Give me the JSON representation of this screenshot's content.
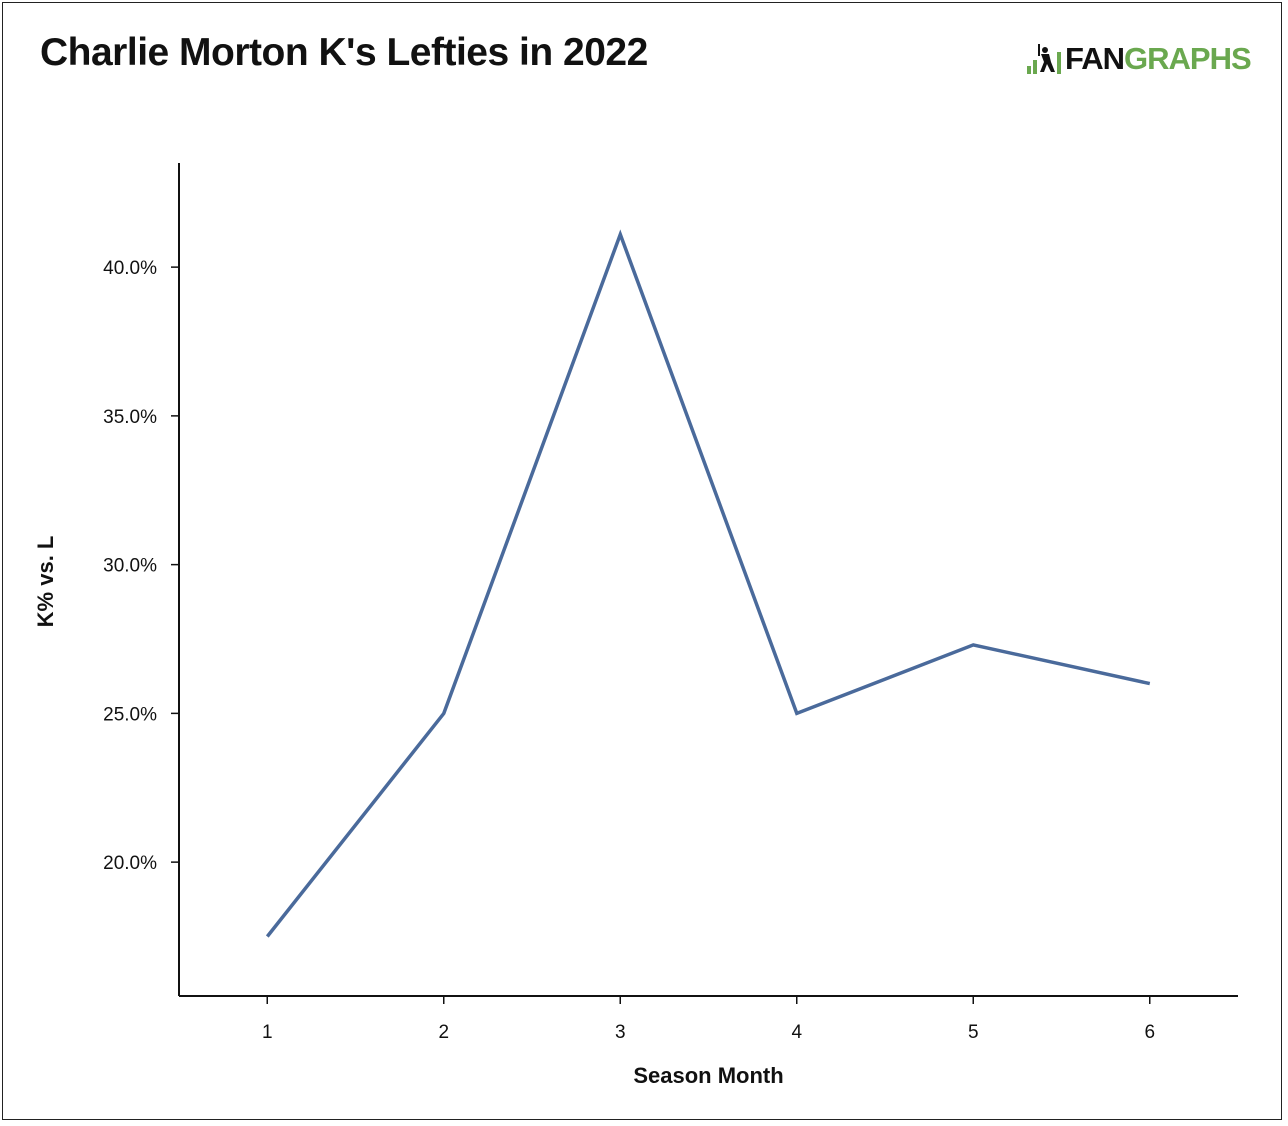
{
  "header": {
    "title": "Charlie Morton K's Lefties in 2022",
    "logo": {
      "text_dark": "FAN",
      "text_green": "GRAPHS",
      "icon": "batter-icon",
      "green": "#6aa84f"
    }
  },
  "chart_data": {
    "type": "line",
    "title": "Charlie Morton K's Lefties in 2022",
    "xlabel": "Season Month",
    "ylabel": "K% vs. L",
    "x": [
      1,
      2,
      3,
      4,
      5,
      6
    ],
    "x_tick_labels": [
      "1",
      "2",
      "3",
      "4",
      "5",
      "6"
    ],
    "y_ticks": [
      0.2,
      0.25,
      0.3,
      0.35,
      0.4
    ],
    "y_tick_labels": [
      "20.0%",
      "25.0%",
      "30.0%",
      "35.0%",
      "40.0%"
    ],
    "ylim": [
      0.155,
      0.435
    ],
    "xlim": [
      0.5,
      6.5
    ],
    "series": [
      {
        "values": [
          0.175,
          0.25,
          0.411,
          0.25,
          0.273,
          0.26
        ],
        "color": "#4a6a9b"
      }
    ],
    "grid": false,
    "legend": "none"
  }
}
